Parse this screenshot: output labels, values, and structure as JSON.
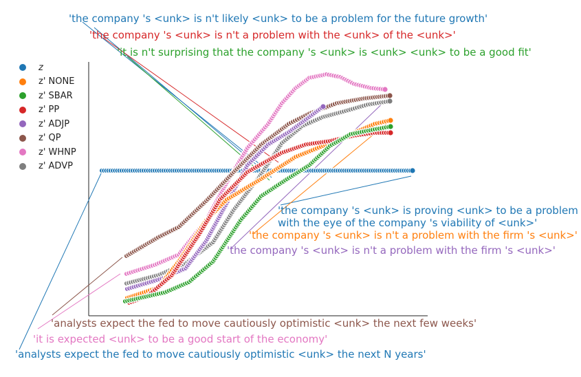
{
  "chart_data": {
    "type": "scatter",
    "title": "",
    "xlabel": "",
    "ylabel": "",
    "grid": false,
    "legend_position": "top-left",
    "series": [
      {
        "name": "z",
        "color": "#1f77b4"
      },
      {
        "name": "z' NONE",
        "color": "#ff7f0e"
      },
      {
        "name": "z' SBAR",
        "color": "#2ca02c"
      },
      {
        "name": "z' PP",
        "color": "#d62728"
      },
      {
        "name": "z' ADJP",
        "color": "#9467bd"
      },
      {
        "name": "z' QP",
        "color": "#8c564b"
      },
      {
        "name": "z' WHNP",
        "color": "#e377c2"
      },
      {
        "name": "z' ADVP",
        "color": "#7f7f7f"
      }
    ],
    "annotations": [
      {
        "id": "a1",
        "text": "'the company 's <unk> is n't likely <unk> to be a problem for the future growth'",
        "color": "#1f77b4"
      },
      {
        "id": "a2",
        "text": "'the company 's <unk> is n't a problem with the <unk> of the <unk>'",
        "color": "#d62728"
      },
      {
        "id": "a3",
        "text": "'it is n't surprising that the company 's <unk> is <unk> <unk> to be a good fit'",
        "color": "#2ca02c"
      },
      {
        "id": "a4",
        "text": "'the company 's <unk> is proving <unk> to be a problem\nwith the eye of the company 's viability of <unk>'",
        "color": "#1f77b4"
      },
      {
        "id": "a5",
        "text": "'the company 's <unk> is n't a problem with the firm 's <unk>'",
        "color": "#ff7f0e"
      },
      {
        "id": "a6",
        "text": "'the company 's <unk> is n't a problem with the firm 's <unk>'",
        "color": "#9467bd"
      },
      {
        "id": "a7",
        "text": "'analysts expect the fed to move cautiously optimistic <unk> the next few weeks'",
        "color": "#8c564b"
      },
      {
        "id": "a8",
        "text": "'it is expected <unk> to be a good start of the economy'",
        "color": "#e377c2"
      },
      {
        "id": "a9",
        "text": "'analysts expect the fed to move cautiously optimistic <unk> the next N years'",
        "color": "#1f77b4"
      }
    ]
  }
}
